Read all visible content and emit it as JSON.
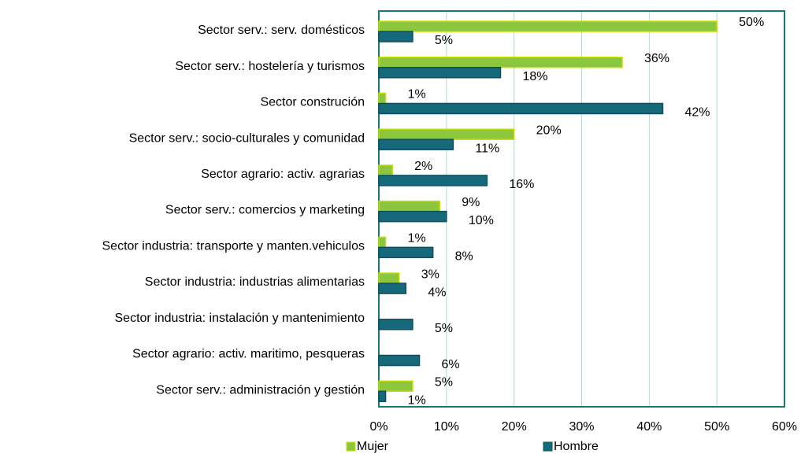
{
  "chart_data": {
    "type": "bar",
    "orientation": "horizontal",
    "categories": [
      "Sector serv.: serv. domésticos",
      "Sector serv.: hostelería y turismos",
      "Sector construción",
      "Sector serv.: socio-culturales y comunidad",
      "Sector agrario: activ. agrarias",
      "Sector serv.: comercios y marketing",
      "Sector industria: transporte y manten.vehiculos",
      "Sector industria: industrias alimentarias",
      "Sector industria: instalación y mantenimiento",
      "Sector agrario: activ. maritimo, pesqueras",
      "Sector serv.: administración y gestión"
    ],
    "series": [
      {
        "name": "Mujer",
        "color": "#8cc63f",
        "values": [
          50,
          36,
          1,
          20,
          2,
          9,
          1,
          3,
          null,
          null,
          5
        ],
        "value_labels": [
          "50%",
          "36%",
          "1%",
          "20%",
          "2%",
          "9%",
          "1%",
          "3%",
          null,
          null,
          "5%"
        ]
      },
      {
        "name": "Hombre",
        "color": "#15697a",
        "values": [
          5,
          18,
          42,
          11,
          16,
          10,
          8,
          4,
          5,
          6,
          1
        ],
        "value_labels": [
          "5%",
          "18%",
          "42%",
          "11%",
          "16%",
          "10%",
          "8%",
          "4%",
          "5%",
          "6%",
          "1%"
        ]
      }
    ],
    "xlim": [
      0,
      60
    ],
    "xticks": [
      {
        "value": 0,
        "label": "0%"
      },
      {
        "value": 10,
        "label": "10%"
      },
      {
        "value": 20,
        "label": "20%"
      },
      {
        "value": 30,
        "label": "30%"
      },
      {
        "value": 40,
        "label": "40%"
      },
      {
        "value": 50,
        "label": "50%"
      },
      {
        "value": 60,
        "label": "60%"
      }
    ],
    "grid": true,
    "legend": "bottom"
  }
}
